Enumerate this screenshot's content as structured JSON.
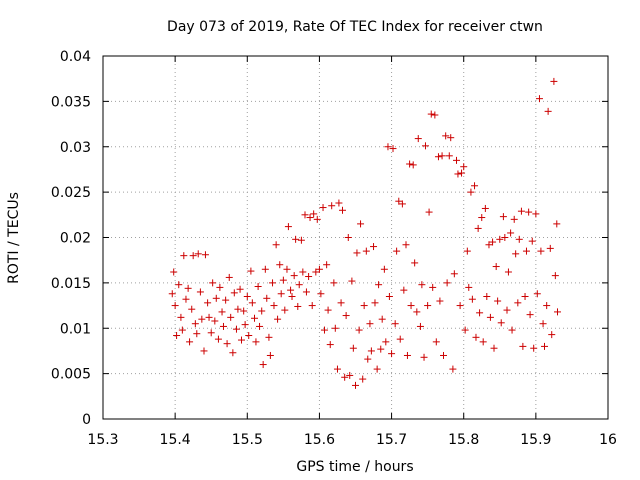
{
  "chart_data": {
    "type": "scatter",
    "title": "Day 073 of 2019, Rate Of TEC Index for receiver ctwn",
    "xlabel": "GPS time / hours",
    "ylabel": "ROTI / TECUs",
    "xlim": [
      15.3,
      16
    ],
    "ylim": [
      0,
      0.04
    ],
    "grid": true,
    "marker": "+",
    "color": "#cc0000",
    "x_ticks": [
      "15.3",
      "15.4",
      "15.5",
      "15.6",
      "15.7",
      "15.8",
      "15.9",
      "16"
    ],
    "y_ticks": [
      "0",
      "0.005",
      "0.01",
      "0.015",
      "0.02",
      "0.025",
      "0.03",
      "0.035",
      "0.04"
    ],
    "series": [
      {
        "name": "ROTI",
        "points": [
          [
            15.396,
            0.0138
          ],
          [
            15.398,
            0.0162
          ],
          [
            15.4,
            0.0125
          ],
          [
            15.402,
            0.0092
          ],
          [
            15.405,
            0.0148
          ],
          [
            15.408,
            0.0112
          ],
          [
            15.41,
            0.0098
          ],
          [
            15.412,
            0.018
          ],
          [
            15.415,
            0.0132
          ],
          [
            15.418,
            0.0144
          ],
          [
            15.42,
            0.0085
          ],
          [
            15.423,
            0.0121
          ],
          [
            15.425,
            0.018
          ],
          [
            15.428,
            0.0105
          ],
          [
            15.43,
            0.0094
          ],
          [
            15.432,
            0.0182
          ],
          [
            15.435,
            0.014
          ],
          [
            15.437,
            0.011
          ],
          [
            15.44,
            0.0075
          ],
          [
            15.442,
            0.0181
          ],
          [
            15.445,
            0.0128
          ],
          [
            15.447,
            0.0112
          ],
          [
            15.45,
            0.0095
          ],
          [
            15.452,
            0.015
          ],
          [
            15.455,
            0.0108
          ],
          [
            15.457,
            0.0133
          ],
          [
            15.46,
            0.0088
          ],
          [
            15.462,
            0.0145
          ],
          [
            15.465,
            0.0118
          ],
          [
            15.467,
            0.0102
          ],
          [
            15.47,
            0.0131
          ],
          [
            15.472,
            0.0083
          ],
          [
            15.475,
            0.0156
          ],
          [
            15.477,
            0.0112
          ],
          [
            15.48,
            0.0073
          ],
          [
            15.482,
            0.0139
          ],
          [
            15.485,
            0.0099
          ],
          [
            15.487,
            0.0121
          ],
          [
            15.49,
            0.0143
          ],
          [
            15.492,
            0.0087
          ],
          [
            15.495,
            0.0119
          ],
          [
            15.497,
            0.0104
          ],
          [
            15.5,
            0.0135
          ],
          [
            15.502,
            0.0092
          ],
          [
            15.505,
            0.0163
          ],
          [
            15.507,
            0.0128
          ],
          [
            15.51,
            0.0111
          ],
          [
            15.512,
            0.0085
          ],
          [
            15.515,
            0.0146
          ],
          [
            15.517,
            0.0102
          ],
          [
            15.52,
            0.0119
          ],
          [
            15.522,
            0.006
          ],
          [
            15.525,
            0.0165
          ],
          [
            15.527,
            0.0133
          ],
          [
            15.53,
            0.009
          ],
          [
            15.532,
            0.007
          ],
          [
            15.535,
            0.015
          ],
          [
            15.537,
            0.0125
          ],
          [
            15.54,
            0.0192
          ],
          [
            15.542,
            0.011
          ],
          [
            15.545,
            0.017
          ],
          [
            15.547,
            0.0138
          ],
          [
            15.55,
            0.0153
          ],
          [
            15.552,
            0.012
          ],
          [
            15.555,
            0.0165
          ],
          [
            15.557,
            0.0212
          ],
          [
            15.56,
            0.0142
          ],
          [
            15.562,
            0.0135
          ],
          [
            15.565,
            0.0158
          ],
          [
            15.567,
            0.0198
          ],
          [
            15.57,
            0.0124
          ],
          [
            15.572,
            0.0148
          ],
          [
            15.575,
            0.0197
          ],
          [
            15.577,
            0.0162
          ],
          [
            15.58,
            0.0225
          ],
          [
            15.582,
            0.014
          ],
          [
            15.585,
            0.0157
          ],
          [
            15.587,
            0.0222
          ],
          [
            15.59,
            0.0125
          ],
          [
            15.592,
            0.0226
          ],
          [
            15.595,
            0.0162
          ],
          [
            15.597,
            0.022
          ],
          [
            15.6,
            0.0165
          ],
          [
            15.602,
            0.0138
          ],
          [
            15.605,
            0.0233
          ],
          [
            15.607,
            0.0098
          ],
          [
            15.61,
            0.017
          ],
          [
            15.612,
            0.012
          ],
          [
            15.615,
            0.0082
          ],
          [
            15.617,
            0.0235
          ],
          [
            15.62,
            0.015
          ],
          [
            15.622,
            0.01
          ],
          [
            15.625,
            0.0055
          ],
          [
            15.627,
            0.0238
          ],
          [
            15.63,
            0.0128
          ],
          [
            15.632,
            0.023
          ],
          [
            15.635,
            0.0046
          ],
          [
            15.637,
            0.0114
          ],
          [
            15.64,
            0.02
          ],
          [
            15.642,
            0.0048
          ],
          [
            15.645,
            0.0152
          ],
          [
            15.647,
            0.0078
          ],
          [
            15.65,
            0.0037
          ],
          [
            15.652,
            0.0183
          ],
          [
            15.655,
            0.0098
          ],
          [
            15.657,
            0.0215
          ],
          [
            15.66,
            0.0044
          ],
          [
            15.662,
            0.0125
          ],
          [
            15.665,
            0.0185
          ],
          [
            15.667,
            0.0066
          ],
          [
            15.67,
            0.0105
          ],
          [
            15.672,
            0.0075
          ],
          [
            15.675,
            0.019
          ],
          [
            15.677,
            0.0128
          ],
          [
            15.68,
            0.0055
          ],
          [
            15.682,
            0.0148
          ],
          [
            15.685,
            0.0077
          ],
          [
            15.687,
            0.011
          ],
          [
            15.69,
            0.0165
          ],
          [
            15.692,
            0.0085
          ],
          [
            15.695,
            0.03
          ],
          [
            15.697,
            0.0135
          ],
          [
            15.7,
            0.0072
          ],
          [
            15.702,
            0.0298
          ],
          [
            15.705,
            0.0105
          ],
          [
            15.707,
            0.0185
          ],
          [
            15.71,
            0.024
          ],
          [
            15.712,
            0.0088
          ],
          [
            15.715,
            0.0237
          ],
          [
            15.717,
            0.0142
          ],
          [
            15.72,
            0.0192
          ],
          [
            15.722,
            0.007
          ],
          [
            15.725,
            0.0281
          ],
          [
            15.727,
            0.0125
          ],
          [
            15.73,
            0.028
          ],
          [
            15.732,
            0.0172
          ],
          [
            15.735,
            0.0118
          ],
          [
            15.737,
            0.0309
          ],
          [
            15.74,
            0.0102
          ],
          [
            15.742,
            0.0148
          ],
          [
            15.745,
            0.0068
          ],
          [
            15.747,
            0.0301
          ],
          [
            15.75,
            0.0125
          ],
          [
            15.752,
            0.0228
          ],
          [
            15.755,
            0.0336
          ],
          [
            15.757,
            0.0145
          ],
          [
            15.76,
            0.0335
          ],
          [
            15.762,
            0.0085
          ],
          [
            15.765,
            0.0289
          ],
          [
            15.767,
            0.013
          ],
          [
            15.77,
            0.029
          ],
          [
            15.772,
            0.007
          ],
          [
            15.775,
            0.0312
          ],
          [
            15.777,
            0.015
          ],
          [
            15.78,
            0.029
          ],
          [
            15.782,
            0.031
          ],
          [
            15.785,
            0.0055
          ],
          [
            15.787,
            0.016
          ],
          [
            15.79,
            0.0285
          ],
          [
            15.792,
            0.027
          ],
          [
            15.795,
            0.0125
          ],
          [
            15.797,
            0.0271
          ],
          [
            15.8,
            0.0278
          ],
          [
            15.802,
            0.0098
          ],
          [
            15.805,
            0.0185
          ],
          [
            15.807,
            0.0145
          ],
          [
            15.81,
            0.025
          ],
          [
            15.812,
            0.0132
          ],
          [
            15.815,
            0.0257
          ],
          [
            15.817,
            0.009
          ],
          [
            15.82,
            0.021
          ],
          [
            15.822,
            0.0117
          ],
          [
            15.825,
            0.0222
          ],
          [
            15.827,
            0.0085
          ],
          [
            15.83,
            0.0232
          ],
          [
            15.832,
            0.0135
          ],
          [
            15.835,
            0.0192
          ],
          [
            15.837,
            0.0112
          ],
          [
            15.84,
            0.0195
          ],
          [
            15.842,
            0.0078
          ],
          [
            15.845,
            0.0168
          ],
          [
            15.847,
            0.013
          ],
          [
            15.85,
            0.0198
          ],
          [
            15.852,
            0.0106
          ],
          [
            15.855,
            0.0223
          ],
          [
            15.857,
            0.02
          ],
          [
            15.86,
            0.012
          ],
          [
            15.862,
            0.0162
          ],
          [
            15.865,
            0.0205
          ],
          [
            15.867,
            0.0098
          ],
          [
            15.87,
            0.022
          ],
          [
            15.872,
            0.0182
          ],
          [
            15.875,
            0.0128
          ],
          [
            15.877,
            0.0198
          ],
          [
            15.88,
            0.0229
          ],
          [
            15.882,
            0.008
          ],
          [
            15.885,
            0.0135
          ],
          [
            15.887,
            0.0185
          ],
          [
            15.89,
            0.0228
          ],
          [
            15.892,
            0.0115
          ],
          [
            15.895,
            0.0196
          ],
          [
            15.897,
            0.0078
          ],
          [
            15.9,
            0.0226
          ],
          [
            15.902,
            0.0138
          ],
          [
            15.905,
            0.0353
          ],
          [
            15.907,
            0.0185
          ],
          [
            15.91,
            0.0105
          ],
          [
            15.912,
            0.008
          ],
          [
            15.915,
            0.0125
          ],
          [
            15.917,
            0.0339
          ],
          [
            15.92,
            0.0188
          ],
          [
            15.922,
            0.0093
          ],
          [
            15.925,
            0.0372
          ],
          [
            15.927,
            0.0158
          ],
          [
            15.929,
            0.0215
          ],
          [
            15.93,
            0.0118
          ]
        ]
      }
    ]
  }
}
